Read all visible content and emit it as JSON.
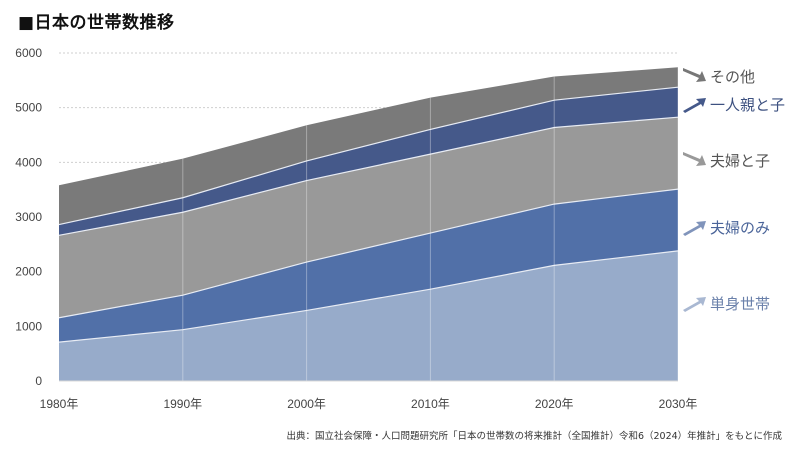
{
  "title": "■日本の世帯数推移",
  "source": "出典：国立社会保障・人口問題研究所「日本の世帯数の将来推計（全国推計）令和6（2024）年推計」をもとに作成",
  "chart_data": {
    "type": "area",
    "stacked": true,
    "title": "日本の世帯数推移",
    "xlabel": "",
    "ylabel": "",
    "categories": [
      "1980年",
      "1990年",
      "2000年",
      "2010年",
      "2020年",
      "2030年"
    ],
    "x": [
      1980,
      1990,
      2000,
      2010,
      2020,
      2030
    ],
    "ylim": [
      0,
      6000
    ],
    "yticks": [
      0,
      1000,
      2000,
      3000,
      4000,
      5000,
      6000
    ],
    "grid": "horizontal dashed + vertical at each category",
    "legend_position": "right (inline labels with arrows)",
    "series": [
      {
        "name": "単身世帯",
        "color": "#97abca",
        "values": [
          711,
          939,
          1291,
          1679,
          2115,
          2380
        ]
      },
      {
        "name": "夫婦のみ",
        "color": "#5170a8",
        "values": [
          446,
          631,
          884,
          1027,
          1121,
          1130
        ]
      },
      {
        "name": "夫婦と子",
        "color": "#999999",
        "values": [
          1508,
          1517,
          1492,
          1444,
          1401,
          1316
        ]
      },
      {
        "name": "一人親と子",
        "color": "#45598a",
        "values": [
          197,
          265,
          358,
          452,
          500,
          549
        ]
      },
      {
        "name": "その他",
        "color": "#7a7a7a",
        "values": [
          718,
          715,
          653,
          582,
          433,
          365
        ]
      }
    ],
    "totals": [
      3580,
      4067,
      4678,
      5184,
      5570,
      5740
    ]
  },
  "legend": [
    {
      "label": "その他",
      "text_color": "#555555",
      "arrow_color": "#777777",
      "arrow": "down-right"
    },
    {
      "label": "一人親と子",
      "text_color": "#3d5180",
      "arrow_color": "#45598a",
      "arrow": "up-right"
    },
    {
      "label": "夫婦と子",
      "text_color": "#555555",
      "arrow_color": "#999999",
      "arrow": "down-right"
    },
    {
      "label": "夫婦のみ",
      "text_color": "#4a6499",
      "arrow_color": "#8094bb",
      "arrow": "up-right"
    },
    {
      "label": "単身世帯",
      "text_color": "#6a80aa",
      "arrow_color": "#a9b8d2",
      "arrow": "up-right"
    }
  ]
}
